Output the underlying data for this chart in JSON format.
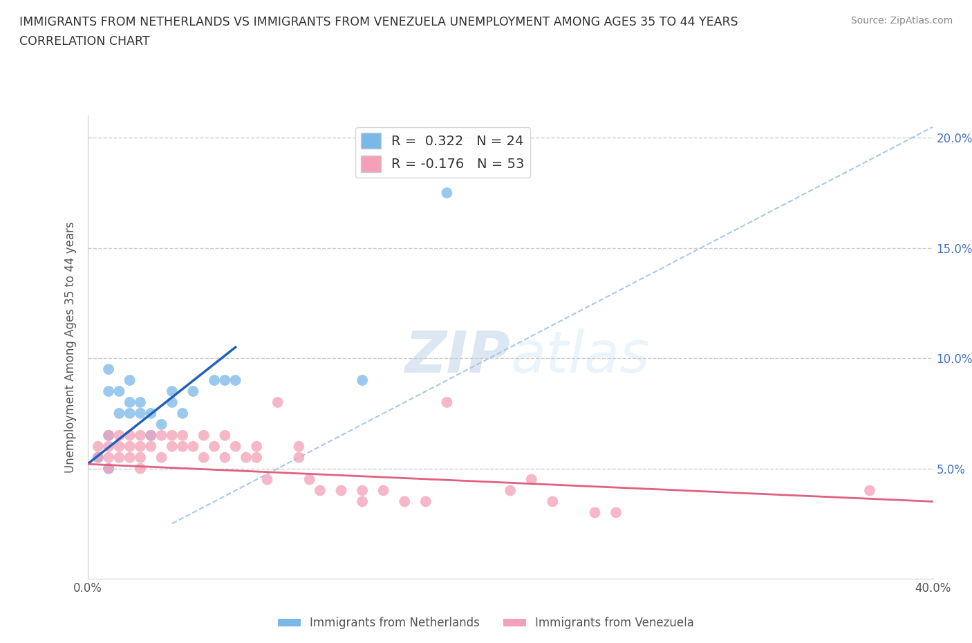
{
  "title_line1": "IMMIGRANTS FROM NETHERLANDS VS IMMIGRANTS FROM VENEZUELA UNEMPLOYMENT AMONG AGES 35 TO 44 YEARS",
  "title_line2": "CORRELATION CHART",
  "source_text": "Source: ZipAtlas.com",
  "ylabel": "Unemployment Among Ages 35 to 44 years",
  "xlim": [
    0.0,
    0.4
  ],
  "ylim": [
    0.0,
    0.21
  ],
  "nl_color": "#7ab8e8",
  "ve_color": "#f4a0b8",
  "nl_line_color": "#2060bb",
  "ve_line_color": "#e06080",
  "diag_line_color": "#aac8e8",
  "background_color": "#ffffff",
  "grid_color": "#cccccc",
  "netherlands_x": [
    0.005,
    0.01,
    0.01,
    0.01,
    0.01,
    0.015,
    0.015,
    0.02,
    0.02,
    0.02,
    0.025,
    0.025,
    0.03,
    0.03,
    0.035,
    0.04,
    0.04,
    0.045,
    0.05,
    0.06,
    0.065,
    0.07,
    0.13,
    0.17
  ],
  "netherlands_y": [
    0.055,
    0.095,
    0.085,
    0.065,
    0.05,
    0.085,
    0.075,
    0.09,
    0.08,
    0.075,
    0.08,
    0.075,
    0.075,
    0.065,
    0.07,
    0.085,
    0.08,
    0.075,
    0.085,
    0.09,
    0.09,
    0.09,
    0.09,
    0.175
  ],
  "venezuela_x": [
    0.005,
    0.005,
    0.01,
    0.01,
    0.01,
    0.01,
    0.015,
    0.015,
    0.015,
    0.02,
    0.02,
    0.02,
    0.025,
    0.025,
    0.025,
    0.025,
    0.03,
    0.03,
    0.035,
    0.035,
    0.04,
    0.04,
    0.045,
    0.045,
    0.05,
    0.055,
    0.055,
    0.06,
    0.065,
    0.065,
    0.07,
    0.075,
    0.08,
    0.08,
    0.085,
    0.09,
    0.1,
    0.1,
    0.105,
    0.11,
    0.12,
    0.13,
    0.13,
    0.14,
    0.15,
    0.16,
    0.17,
    0.2,
    0.21,
    0.22,
    0.24,
    0.25,
    0.37
  ],
  "venezuela_y": [
    0.06,
    0.055,
    0.065,
    0.06,
    0.055,
    0.05,
    0.065,
    0.06,
    0.055,
    0.065,
    0.06,
    0.055,
    0.065,
    0.06,
    0.055,
    0.05,
    0.065,
    0.06,
    0.065,
    0.055,
    0.065,
    0.06,
    0.065,
    0.06,
    0.06,
    0.065,
    0.055,
    0.06,
    0.065,
    0.055,
    0.06,
    0.055,
    0.06,
    0.055,
    0.045,
    0.08,
    0.06,
    0.055,
    0.045,
    0.04,
    0.04,
    0.04,
    0.035,
    0.04,
    0.035,
    0.035,
    0.08,
    0.04,
    0.045,
    0.035,
    0.03,
    0.03,
    0.04
  ],
  "nl_line_x": [
    0.0,
    0.07
  ],
  "nl_line_y": [
    0.052,
    0.105
  ],
  "ve_line_x": [
    0.0,
    0.4
  ],
  "ve_line_y": [
    0.052,
    0.035
  ]
}
